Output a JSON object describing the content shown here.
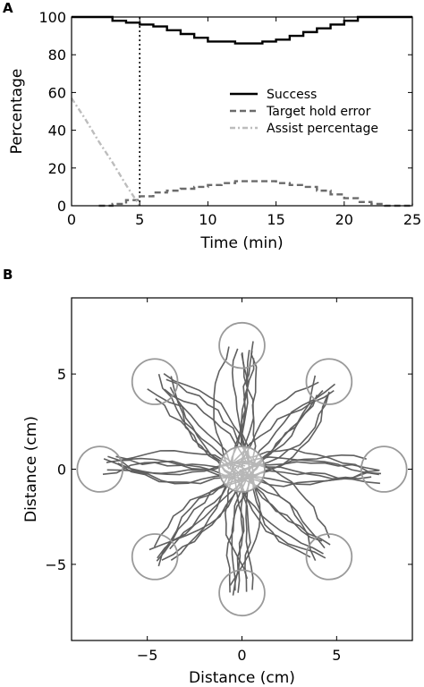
{
  "panels": {
    "a": {
      "letter": "A"
    },
    "b": {
      "letter": "B"
    }
  },
  "colors": {
    "success": "#000000",
    "target_hold_error": "#6b6b6b",
    "assist_percentage": "#bdbdbd",
    "target_circles": "#9a9a9a",
    "trajectories": "#5f5f5f"
  },
  "chart_data": [
    {
      "type": "line",
      "panel": "A",
      "xlabel": "Time (min)",
      "ylabel": "Percentage",
      "xlim": [
        0,
        25
      ],
      "ylim": [
        0,
        100
      ],
      "xticks": [
        0,
        5,
        10,
        15,
        20,
        25
      ],
      "yticks": [
        0,
        20,
        40,
        60,
        80,
        100
      ],
      "legend_position": "center-right",
      "vline_x": 5,
      "series": [
        {
          "name": "Success",
          "style": "solid",
          "x": [
            0,
            1,
            2,
            3,
            4,
            5,
            6,
            7,
            8,
            9,
            10,
            11,
            12,
            13,
            14,
            15,
            16,
            17,
            18,
            19,
            20,
            21,
            22,
            23,
            24,
            25
          ],
          "y": [
            100,
            100,
            100,
            98,
            97,
            96,
            95,
            93,
            91,
            89,
            87,
            87,
            86,
            86,
            87,
            88,
            90,
            92,
            94,
            96,
            98,
            100,
            100,
            100,
            100,
            100
          ]
        },
        {
          "name": "Target hold error",
          "style": "dashed",
          "x": [
            2,
            3,
            4,
            5,
            6,
            7,
            8,
            9,
            10,
            11,
            12,
            13,
            14,
            15,
            16,
            17,
            18,
            19,
            20,
            21,
            22,
            23,
            24,
            25
          ],
          "y": [
            0,
            1,
            3,
            5,
            7,
            8,
            9,
            10,
            11,
            12,
            13,
            13,
            13,
            12,
            11,
            10,
            8,
            6,
            4,
            2,
            1,
            0,
            0,
            1
          ]
        },
        {
          "name": "Assist percentage",
          "style": "dashdot",
          "x": [
            0,
            1,
            2,
            3,
            4,
            5
          ],
          "y": [
            57,
            46,
            34,
            23,
            11,
            0
          ]
        }
      ]
    },
    {
      "type": "scatter",
      "panel": "B",
      "xlabel": "Distance (cm)",
      "ylabel": "Distance (cm)",
      "xlim": [
        -9,
        9
      ],
      "ylim": [
        -9,
        9
      ],
      "xticks": [
        -5,
        0,
        5
      ],
      "yticks": [
        -5,
        0,
        5
      ],
      "center_target": {
        "x": 0,
        "y": 0,
        "radius": 1.2
      },
      "target_radius": 1.2,
      "targets": [
        {
          "x": 0,
          "y": 6.5
        },
        {
          "x": 4.6,
          "y": 4.6
        },
        {
          "x": 7.5,
          "y": 0
        },
        {
          "x": 4.6,
          "y": -4.6
        },
        {
          "x": 0,
          "y": -6.5
        },
        {
          "x": -4.6,
          "y": -4.6
        },
        {
          "x": -7.5,
          "y": 0
        },
        {
          "x": -4.6,
          "y": 4.6
        }
      ],
      "trajectories_per_target": 8
    }
  ]
}
